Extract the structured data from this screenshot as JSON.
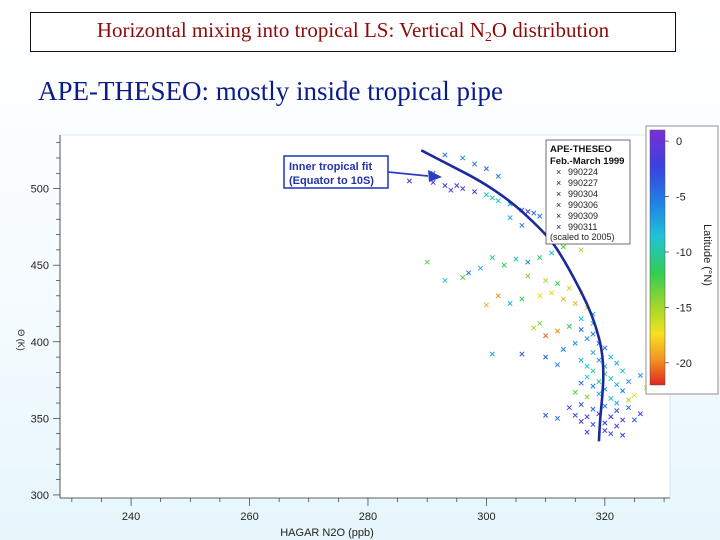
{
  "slide": {
    "title_main": "Horizontal mixing into tropical LS:  Vertical N",
    "title_sub": "2",
    "title_tail": "O distribution",
    "subtitle": "APE-THESEO:  mostly inside tropical pipe"
  },
  "chart_data": {
    "type": "scatter",
    "xlabel": "HAGAR N2O (ppb)",
    "ylabel": "Θ (K)",
    "xlim": [
      228,
      331
    ],
    "ylim": [
      298,
      535
    ],
    "x_ticks": [
      240,
      260,
      280,
      300,
      320
    ],
    "y_ticks": [
      300,
      350,
      400,
      450,
      500
    ],
    "callout": {
      "line1": "Inner tropical fit",
      "line2": "(Equator to 10S)"
    },
    "legend": {
      "title": "APE-THESEO",
      "period": "Feb.-March 1999",
      "flights": [
        "990224",
        "990227",
        "990304",
        "990306",
        "990309",
        "990311"
      ],
      "note": "(scaled to 2005)"
    },
    "colorbar": {
      "label": "Latitude (°N)",
      "ticks": [
        0,
        -5,
        -10,
        -15,
        -20
      ],
      "range": [
        1,
        -22
      ]
    },
    "fit_curve": {
      "name": "Inner tropical fit",
      "color": "#1a2a9a",
      "points": [
        [
          289,
          525
        ],
        [
          294,
          515
        ],
        [
          299,
          505
        ],
        [
          304,
          492
        ],
        [
          308,
          478
        ],
        [
          311,
          466
        ],
        [
          313,
          454
        ],
        [
          315,
          440
        ],
        [
          317,
          425
        ],
        [
          318.5,
          410
        ],
        [
          319.5,
          395
        ],
        [
          319.8,
          380
        ],
        [
          319.6,
          365
        ],
        [
          319.2,
          350
        ],
        [
          319,
          335
        ]
      ]
    },
    "series": [
      {
        "name": "APE-THESEO flights",
        "points": [
          [
            293,
            522,
            -6
          ],
          [
            296,
            520,
            -7
          ],
          [
            298,
            516,
            -6
          ],
          [
            300,
            513,
            -5
          ],
          [
            302,
            508,
            -6
          ],
          [
            291,
            510,
            -5
          ],
          [
            287,
            505,
            -3
          ],
          [
            291,
            504,
            -2
          ],
          [
            293,
            502,
            -2
          ],
          [
            295,
            502,
            -1
          ],
          [
            296,
            500,
            -2
          ],
          [
            294,
            499,
            -1
          ],
          [
            298,
            498,
            -3
          ],
          [
            300,
            496,
            -9
          ],
          [
            301,
            494,
            -10
          ],
          [
            302,
            492,
            -9
          ],
          [
            304,
            490,
            -7
          ],
          [
            306,
            486,
            -4
          ],
          [
            307,
            485,
            -3
          ],
          [
            309,
            482,
            -6
          ],
          [
            311,
            478,
            -7
          ],
          [
            304,
            481,
            -8
          ],
          [
            308,
            484,
            -5
          ],
          [
            306,
            476,
            -6
          ],
          [
            312,
            470,
            -11
          ],
          [
            315,
            465,
            -12
          ],
          [
            313,
            462,
            -13
          ],
          [
            316,
            460,
            -15
          ],
          [
            311,
            458,
            -9
          ],
          [
            309,
            455,
            -11
          ],
          [
            307,
            452,
            -6
          ],
          [
            305,
            454,
            -10
          ],
          [
            303,
            450,
            -12
          ],
          [
            301,
            455,
            -11
          ],
          [
            299,
            448,
            -8
          ],
          [
            297,
            445,
            -6
          ],
          [
            296,
            442,
            -13
          ],
          [
            293,
            440,
            -10
          ],
          [
            290,
            452,
            -13
          ],
          [
            307,
            443,
            -14
          ],
          [
            310,
            440,
            -15
          ],
          [
            312,
            438,
            -12
          ],
          [
            314,
            435,
            -16
          ],
          [
            316,
            432,
            -17
          ],
          [
            311,
            432,
            -18
          ],
          [
            309,
            430,
            -17
          ],
          [
            313,
            428,
            -19
          ],
          [
            306,
            428,
            -12
          ],
          [
            304,
            425,
            -8
          ],
          [
            315,
            425,
            -19
          ],
          [
            317,
            422,
            -17
          ],
          [
            318,
            418,
            -8
          ],
          [
            316,
            415,
            -9
          ],
          [
            318,
            412,
            -10
          ],
          [
            314,
            410,
            -12
          ],
          [
            312,
            407,
            -20
          ],
          [
            310,
            404,
            -21
          ],
          [
            308,
            409,
            -15
          ],
          [
            309,
            412,
            -14
          ],
          [
            316,
            408,
            -5
          ],
          [
            318,
            405,
            -6
          ],
          [
            317,
            402,
            -7
          ],
          [
            319,
            399,
            -6
          ],
          [
            320,
            396,
            -5
          ],
          [
            318,
            393,
            -8
          ],
          [
            321,
            390,
            -9
          ],
          [
            319,
            388,
            -7
          ],
          [
            322,
            386,
            -8
          ],
          [
            320,
            384,
            -10
          ],
          [
            317,
            384,
            -9
          ],
          [
            316,
            388,
            -8
          ],
          [
            318,
            381,
            -11
          ],
          [
            320,
            379,
            -12
          ],
          [
            323,
            381,
            -9
          ],
          [
            321,
            376,
            -10
          ],
          [
            319,
            374,
            -11
          ],
          [
            317,
            377,
            -9
          ],
          [
            322,
            372,
            -8
          ],
          [
            324,
            374,
            -7
          ],
          [
            318,
            371,
            -6
          ],
          [
            316,
            373,
            -5
          ],
          [
            320,
            369,
            -7
          ],
          [
            323,
            368,
            -6
          ],
          [
            319,
            366,
            -8
          ],
          [
            321,
            363,
            -9
          ],
          [
            317,
            364,
            -14
          ],
          [
            315,
            367,
            -13
          ],
          [
            322,
            360,
            -8
          ],
          [
            320,
            358,
            -6
          ],
          [
            318,
            356,
            -5
          ],
          [
            316,
            359,
            -4
          ],
          [
            314,
            357,
            -3
          ],
          [
            322,
            355,
            -4
          ],
          [
            324,
            357,
            -5
          ],
          [
            319,
            353,
            -3
          ],
          [
            317,
            351,
            -2
          ],
          [
            321,
            351,
            -3
          ],
          [
            315,
            352,
            -4
          ],
          [
            323,
            349,
            -2
          ],
          [
            320,
            347,
            -3
          ],
          [
            318,
            346,
            -4
          ],
          [
            316,
            348,
            -2
          ],
          [
            322,
            345,
            -3
          ],
          [
            312,
            350,
            -5
          ],
          [
            310,
            352,
            -4
          ],
          [
            326,
            353,
            -3
          ],
          [
            325,
            349,
            -4
          ],
          [
            320,
            342,
            -2
          ],
          [
            317,
            341,
            -3
          ],
          [
            321,
            340,
            -4
          ],
          [
            323,
            339,
            -3
          ],
          [
            325,
            365,
            -17
          ],
          [
            327,
            370,
            -16
          ],
          [
            326,
            378,
            -7
          ],
          [
            312,
            385,
            -6
          ],
          [
            310,
            390,
            -5
          ],
          [
            306,
            392,
            -4
          ],
          [
            301,
            392,
            -7
          ],
          [
            324,
            362,
            -15
          ],
          [
            313,
            395,
            -6
          ],
          [
            315,
            399,
            -7
          ],
          [
            302,
            430,
            -20
          ],
          [
            300,
            424,
            -19
          ]
        ]
      }
    ]
  }
}
